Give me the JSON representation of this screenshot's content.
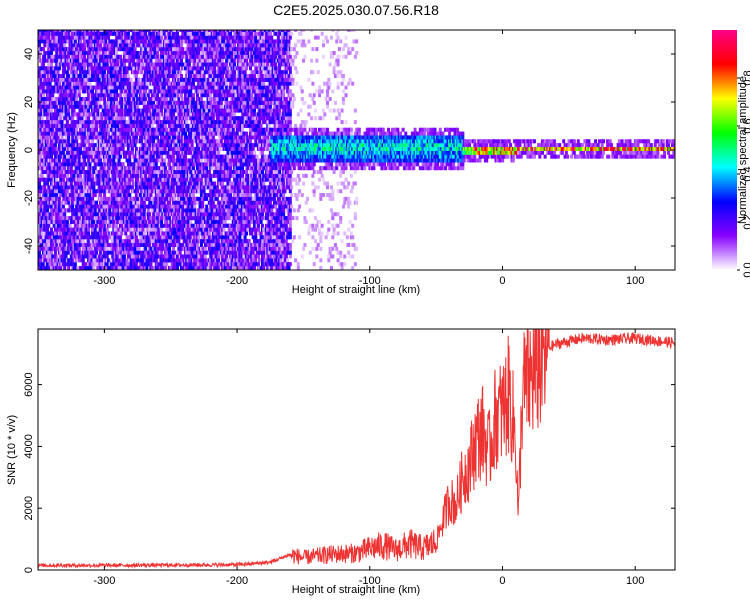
{
  "figure": {
    "title": "C2E5.2025.030.07.56.R18"
  },
  "chart_data": [
    {
      "type": "heatmap",
      "title": "C2E5.2025.030.07.56.R18",
      "xlabel": "Height of straight line (km)",
      "ylabel": "Frequency (Hz)",
      "xlim": [
        -350,
        130
      ],
      "ylim": [
        -50,
        50
      ],
      "xticks": [
        -300,
        -200,
        -100,
        0,
        100
      ],
      "yticks": [
        -40,
        -20,
        0,
        20,
        40
      ],
      "colorbar": {
        "label": "Normalized spectral amplitude",
        "range": [
          0,
          1
        ],
        "ticks": [
          0.0,
          0.2,
          0.4,
          0.6,
          0.8
        ],
        "colormap": [
          "#ffffff",
          "#8800ff",
          "#0000ff",
          "#00ffff",
          "#00ff00",
          "#ffff00",
          "#ff0000",
          "#ff0088"
        ]
      },
      "regions": [
        {
          "x_range": [
            -350,
            -160
          ],
          "freq_range": [
            -50,
            50
          ],
          "amplitude": 0.1,
          "description_value": "noise"
        },
        {
          "x_range": [
            -160,
            -110
          ],
          "freq_range": [
            -50,
            50
          ],
          "amplitude": 0.03
        },
        {
          "x_range": [
            -175,
            -30
          ],
          "freq_center": 0,
          "freq_halfwidth": 6,
          "amplitude": 0.45
        },
        {
          "x_range": [
            -30,
            10
          ],
          "freq_center": -1,
          "freq_halfwidth": 2,
          "amplitude": 0.85
        },
        {
          "x_range": [
            10,
            130
          ],
          "freq_center": 0,
          "freq_halfwidth": 1,
          "amplitude": 0.95
        }
      ]
    },
    {
      "type": "line",
      "xlabel": "Height of straight line (km)",
      "ylabel": "SNR (10 * v/v)",
      "xlim": [
        -350,
        130
      ],
      "ylim": [
        0,
        7800
      ],
      "xticks": [
        -300,
        -200,
        -100,
        0,
        100
      ],
      "yticks": [
        0,
        2000,
        4000,
        6000
      ],
      "color": "#ee3333",
      "series": [
        {
          "x": [
            -350,
            -300,
            -250,
            -200,
            -175,
            -160,
            -150,
            -130,
            -110,
            -100,
            -90,
            -80,
            -70,
            -60,
            -50,
            -45,
            -40,
            -35,
            -30,
            -25,
            -20,
            -15,
            -10,
            -5,
            0,
            5,
            10,
            12,
            15,
            20,
            25,
            30,
            35,
            40,
            50,
            60,
            80,
            100,
            120,
            130
          ],
          "y": [
            150,
            150,
            160,
            170,
            250,
            500,
            400,
            500,
            550,
            700,
            800,
            650,
            850,
            700,
            900,
            1600,
            2300,
            2100,
            3000,
            3400,
            4200,
            4500,
            3800,
            5000,
            5100,
            5700,
            4200,
            1700,
            5800,
            6100,
            6500,
            6800,
            7200,
            7300,
            7400,
            7500,
            7450,
            7500,
            7400,
            7350
          ]
        }
      ]
    }
  ]
}
